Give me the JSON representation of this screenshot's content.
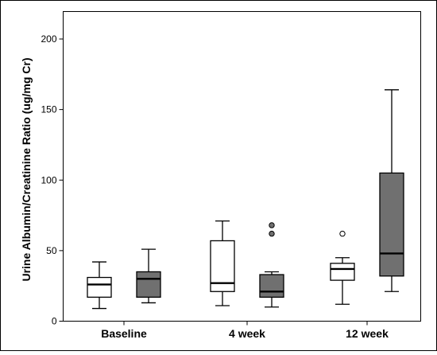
{
  "chart_data": {
    "type": "box",
    "title": "",
    "xlabel": "",
    "ylabel": "Urine Albumin/Creatinine Ratio (ug/mg Cr)",
    "ylim": [
      0,
      220
    ],
    "yticks": [
      0,
      50,
      100,
      150,
      200
    ],
    "grid": false,
    "legend": "none",
    "categories": [
      "Baseline",
      "4 week",
      "12 week"
    ],
    "series": [
      {
        "color": "#ffffff",
        "boxes": [
          {
            "min": 9,
            "q1": 17,
            "median": 26,
            "q3": 31,
            "max": 42,
            "outliers": [],
            "outlier_style": "open"
          },
          {
            "min": 11,
            "q1": 21,
            "median": 27,
            "q3": 57,
            "max": 71,
            "outliers": [],
            "outlier_style": "open"
          },
          {
            "min": 12,
            "q1": 29,
            "median": 37,
            "q3": 41,
            "max": 45,
            "outliers": [
              62
            ],
            "outlier_style": "open"
          }
        ]
      },
      {
        "color": "#707070",
        "boxes": [
          {
            "min": 13,
            "q1": 17,
            "median": 30,
            "q3": 35,
            "max": 51,
            "outliers": [],
            "outlier_style": "filled"
          },
          {
            "min": 10,
            "q1": 17,
            "median": 21,
            "q3": 33,
            "max": 35,
            "outliers": [
              62,
              68
            ],
            "outlier_style": "filled"
          },
          {
            "min": 21,
            "q1": 32,
            "median": 48,
            "q3": 105,
            "max": 164,
            "outliers": [],
            "outlier_style": "filled"
          }
        ]
      }
    ]
  }
}
